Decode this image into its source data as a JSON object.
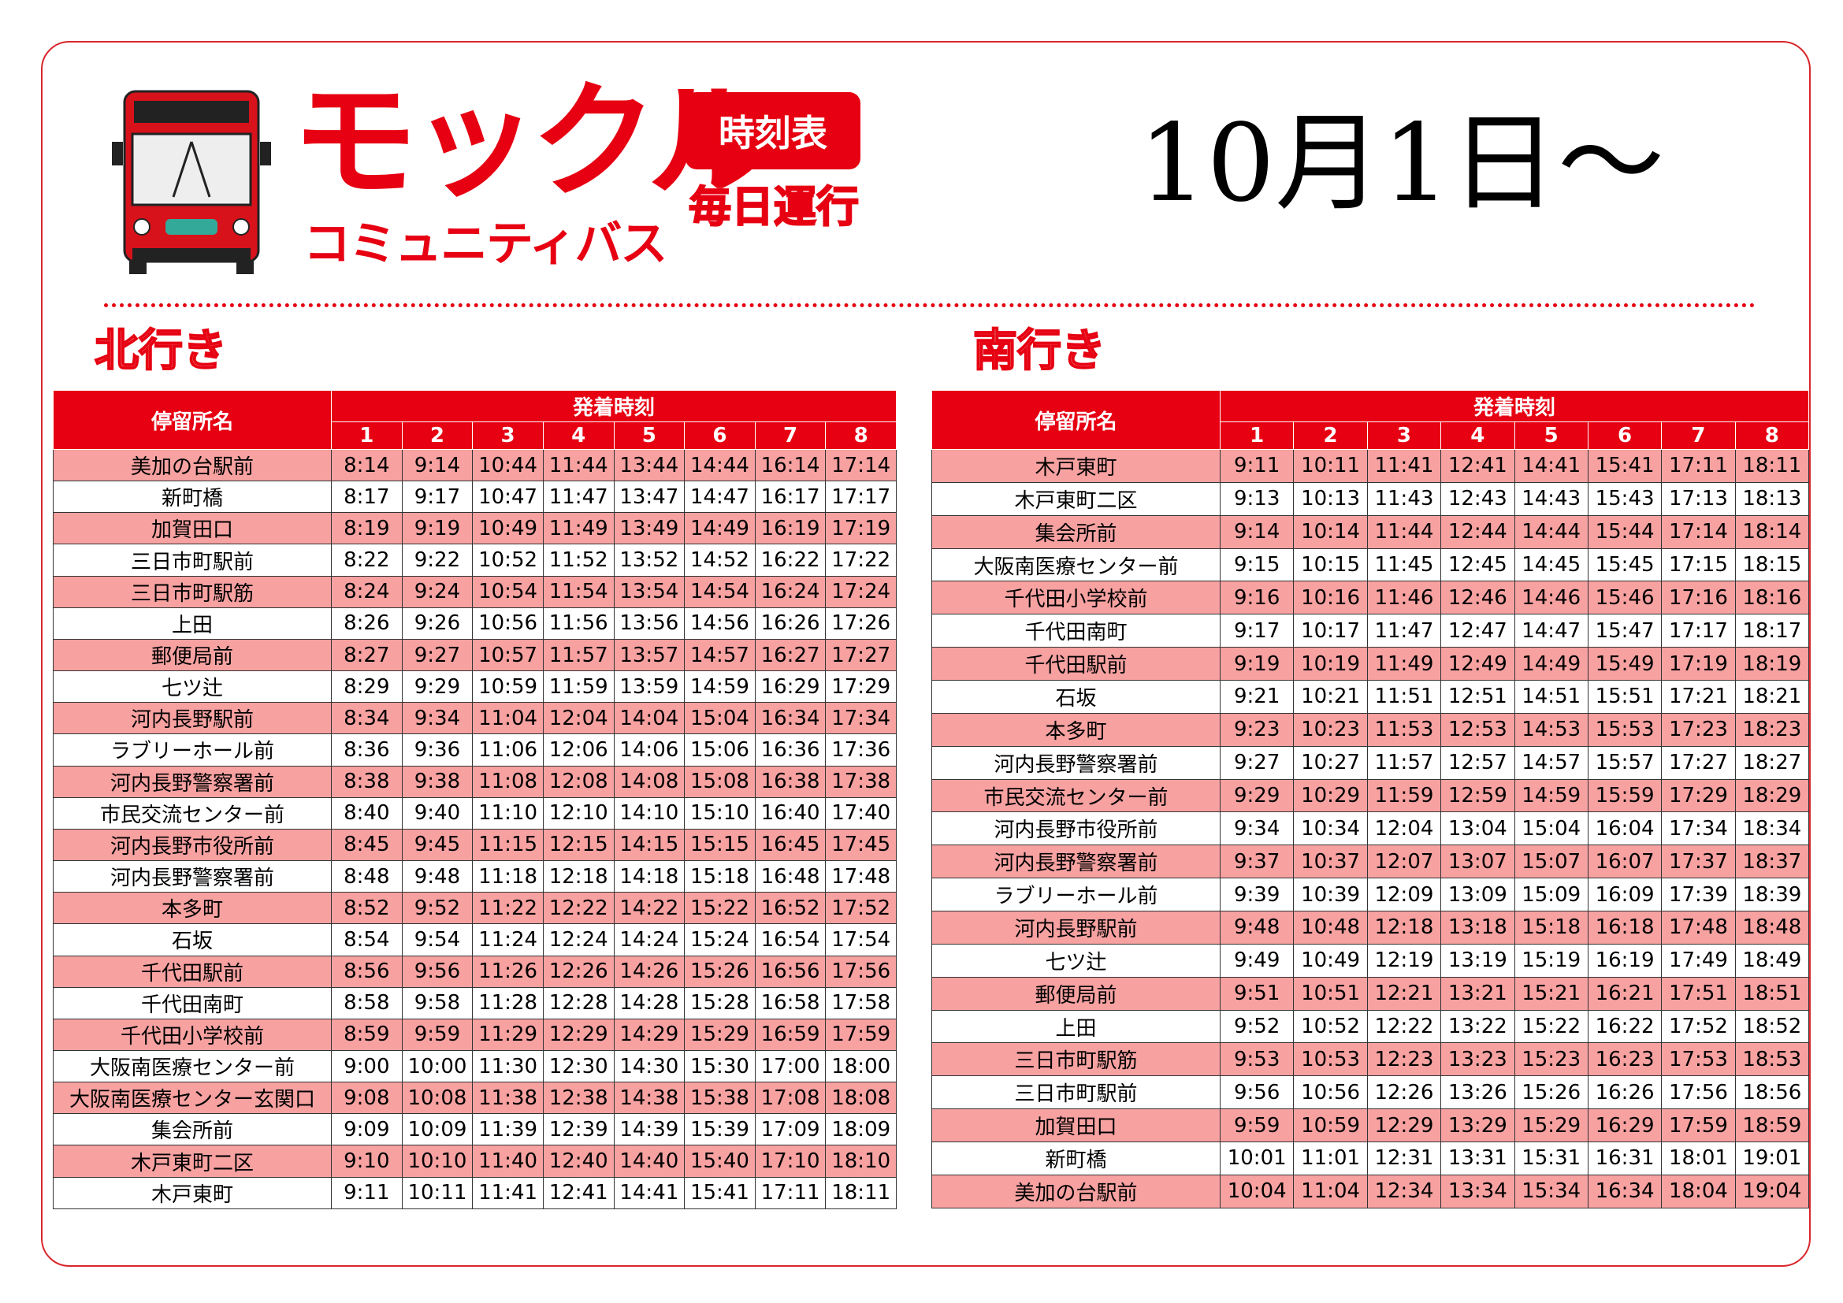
{
  "header": {
    "brand": "モックル",
    "subtitle": "コミュニティバス",
    "badge": "時刻表",
    "schedule": "毎日運行",
    "date": "10月1日～"
  },
  "north": {
    "title": "北行き",
    "stop_header": "停留所名",
    "time_header": "発着時刻",
    "trips": [
      "1",
      "2",
      "3",
      "4",
      "5",
      "6",
      "7",
      "8"
    ],
    "rows": [
      {
        "stop": "美加の台駅前",
        "times": [
          "8:14",
          "9:14",
          "10:44",
          "11:44",
          "13:44",
          "14:44",
          "16:14",
          "17:14"
        ]
      },
      {
        "stop": "新町橋",
        "times": [
          "8:17",
          "9:17",
          "10:47",
          "11:47",
          "13:47",
          "14:47",
          "16:17",
          "17:17"
        ]
      },
      {
        "stop": "加賀田口",
        "times": [
          "8:19",
          "9:19",
          "10:49",
          "11:49",
          "13:49",
          "14:49",
          "16:19",
          "17:19"
        ]
      },
      {
        "stop": "三日市町駅前",
        "times": [
          "8:22",
          "9:22",
          "10:52",
          "11:52",
          "13:52",
          "14:52",
          "16:22",
          "17:22"
        ]
      },
      {
        "stop": "三日市町駅筋",
        "times": [
          "8:24",
          "9:24",
          "10:54",
          "11:54",
          "13:54",
          "14:54",
          "16:24",
          "17:24"
        ]
      },
      {
        "stop": "上田",
        "times": [
          "8:26",
          "9:26",
          "10:56",
          "11:56",
          "13:56",
          "14:56",
          "16:26",
          "17:26"
        ]
      },
      {
        "stop": "郵便局前",
        "times": [
          "8:27",
          "9:27",
          "10:57",
          "11:57",
          "13:57",
          "14:57",
          "16:27",
          "17:27"
        ]
      },
      {
        "stop": "七ツ辻",
        "times": [
          "8:29",
          "9:29",
          "10:59",
          "11:59",
          "13:59",
          "14:59",
          "16:29",
          "17:29"
        ]
      },
      {
        "stop": "河内長野駅前",
        "times": [
          "8:34",
          "9:34",
          "11:04",
          "12:04",
          "14:04",
          "15:04",
          "16:34",
          "17:34"
        ]
      },
      {
        "stop": "ラブリーホール前",
        "times": [
          "8:36",
          "9:36",
          "11:06",
          "12:06",
          "14:06",
          "15:06",
          "16:36",
          "17:36"
        ]
      },
      {
        "stop": "河内長野警察署前",
        "times": [
          "8:38",
          "9:38",
          "11:08",
          "12:08",
          "14:08",
          "15:08",
          "16:38",
          "17:38"
        ]
      },
      {
        "stop": "市民交流センター前",
        "times": [
          "8:40",
          "9:40",
          "11:10",
          "12:10",
          "14:10",
          "15:10",
          "16:40",
          "17:40"
        ]
      },
      {
        "stop": "河内長野市役所前",
        "times": [
          "8:45",
          "9:45",
          "11:15",
          "12:15",
          "14:15",
          "15:15",
          "16:45",
          "17:45"
        ]
      },
      {
        "stop": "河内長野警察署前",
        "times": [
          "8:48",
          "9:48",
          "11:18",
          "12:18",
          "14:18",
          "15:18",
          "16:48",
          "17:48"
        ]
      },
      {
        "stop": "本多町",
        "times": [
          "8:52",
          "9:52",
          "11:22",
          "12:22",
          "14:22",
          "15:22",
          "16:52",
          "17:52"
        ]
      },
      {
        "stop": "石坂",
        "times": [
          "8:54",
          "9:54",
          "11:24",
          "12:24",
          "14:24",
          "15:24",
          "16:54",
          "17:54"
        ]
      },
      {
        "stop": "千代田駅前",
        "times": [
          "8:56",
          "9:56",
          "11:26",
          "12:26",
          "14:26",
          "15:26",
          "16:56",
          "17:56"
        ]
      },
      {
        "stop": "千代田南町",
        "times": [
          "8:58",
          "9:58",
          "11:28",
          "12:28",
          "14:28",
          "15:28",
          "16:58",
          "17:58"
        ]
      },
      {
        "stop": "千代田小学校前",
        "times": [
          "8:59",
          "9:59",
          "11:29",
          "12:29",
          "14:29",
          "15:29",
          "16:59",
          "17:59"
        ]
      },
      {
        "stop": "大阪南医療センター前",
        "times": [
          "9:00",
          "10:00",
          "11:30",
          "12:30",
          "14:30",
          "15:30",
          "17:00",
          "18:00"
        ]
      },
      {
        "stop": "大阪南医療センター玄関口",
        "times": [
          "9:08",
          "10:08",
          "11:38",
          "12:38",
          "14:38",
          "15:38",
          "17:08",
          "18:08"
        ]
      },
      {
        "stop": "集会所前",
        "times": [
          "9:09",
          "10:09",
          "11:39",
          "12:39",
          "14:39",
          "15:39",
          "17:09",
          "18:09"
        ]
      },
      {
        "stop": "木戸東町二区",
        "times": [
          "9:10",
          "10:10",
          "11:40",
          "12:40",
          "14:40",
          "15:40",
          "17:10",
          "18:10"
        ]
      },
      {
        "stop": "木戸東町",
        "times": [
          "9:11",
          "10:11",
          "11:41",
          "12:41",
          "14:41",
          "15:41",
          "17:11",
          "18:11"
        ]
      }
    ]
  },
  "south": {
    "title": "南行き",
    "stop_header": "停留所名",
    "time_header": "発着時刻",
    "trips": [
      "1",
      "2",
      "3",
      "4",
      "5",
      "6",
      "7",
      "8"
    ],
    "rows": [
      {
        "stop": "木戸東町",
        "times": [
          "9:11",
          "10:11",
          "11:41",
          "12:41",
          "14:41",
          "15:41",
          "17:11",
          "18:11"
        ]
      },
      {
        "stop": "木戸東町二区",
        "times": [
          "9:13",
          "10:13",
          "11:43",
          "12:43",
          "14:43",
          "15:43",
          "17:13",
          "18:13"
        ]
      },
      {
        "stop": "集会所前",
        "times": [
          "9:14",
          "10:14",
          "11:44",
          "12:44",
          "14:44",
          "15:44",
          "17:14",
          "18:14"
        ]
      },
      {
        "stop": "大阪南医療センター前",
        "times": [
          "9:15",
          "10:15",
          "11:45",
          "12:45",
          "14:45",
          "15:45",
          "17:15",
          "18:15"
        ]
      },
      {
        "stop": "千代田小学校前",
        "times": [
          "9:16",
          "10:16",
          "11:46",
          "12:46",
          "14:46",
          "15:46",
          "17:16",
          "18:16"
        ]
      },
      {
        "stop": "千代田南町",
        "times": [
          "9:17",
          "10:17",
          "11:47",
          "12:47",
          "14:47",
          "15:47",
          "17:17",
          "18:17"
        ]
      },
      {
        "stop": "千代田駅前",
        "times": [
          "9:19",
          "10:19",
          "11:49",
          "12:49",
          "14:49",
          "15:49",
          "17:19",
          "18:19"
        ]
      },
      {
        "stop": "石坂",
        "times": [
          "9:21",
          "10:21",
          "11:51",
          "12:51",
          "14:51",
          "15:51",
          "17:21",
          "18:21"
        ]
      },
      {
        "stop": "本多町",
        "times": [
          "9:23",
          "10:23",
          "11:53",
          "12:53",
          "14:53",
          "15:53",
          "17:23",
          "18:23"
        ]
      },
      {
        "stop": "河内長野警察署前",
        "times": [
          "9:27",
          "10:27",
          "11:57",
          "12:57",
          "14:57",
          "15:57",
          "17:27",
          "18:27"
        ]
      },
      {
        "stop": "市民交流センター前",
        "times": [
          "9:29",
          "10:29",
          "11:59",
          "12:59",
          "14:59",
          "15:59",
          "17:29",
          "18:29"
        ]
      },
      {
        "stop": "河内長野市役所前",
        "times": [
          "9:34",
          "10:34",
          "12:04",
          "13:04",
          "15:04",
          "16:04",
          "17:34",
          "18:34"
        ]
      },
      {
        "stop": "河内長野警察署前",
        "times": [
          "9:37",
          "10:37",
          "12:07",
          "13:07",
          "15:07",
          "16:07",
          "17:37",
          "18:37"
        ]
      },
      {
        "stop": "ラブリーホール前",
        "times": [
          "9:39",
          "10:39",
          "12:09",
          "13:09",
          "15:09",
          "16:09",
          "17:39",
          "18:39"
        ]
      },
      {
        "stop": "河内長野駅前",
        "times": [
          "9:48",
          "10:48",
          "12:18",
          "13:18",
          "15:18",
          "16:18",
          "17:48",
          "18:48"
        ]
      },
      {
        "stop": "七ツ辻",
        "times": [
          "9:49",
          "10:49",
          "12:19",
          "13:19",
          "15:19",
          "16:19",
          "17:49",
          "18:49"
        ]
      },
      {
        "stop": "郵便局前",
        "times": [
          "9:51",
          "10:51",
          "12:21",
          "13:21",
          "15:21",
          "16:21",
          "17:51",
          "18:51"
        ]
      },
      {
        "stop": "上田",
        "times": [
          "9:52",
          "10:52",
          "12:22",
          "13:22",
          "15:22",
          "16:22",
          "17:52",
          "18:52"
        ]
      },
      {
        "stop": "三日市町駅筋",
        "times": [
          "9:53",
          "10:53",
          "12:23",
          "13:23",
          "15:23",
          "16:23",
          "17:53",
          "18:53"
        ]
      },
      {
        "stop": "三日市町駅前",
        "times": [
          "9:56",
          "10:56",
          "12:26",
          "13:26",
          "15:26",
          "16:26",
          "17:56",
          "18:56"
        ]
      },
      {
        "stop": "加賀田口",
        "times": [
          "9:59",
          "10:59",
          "12:29",
          "13:29",
          "15:29",
          "16:29",
          "17:59",
          "18:59"
        ]
      },
      {
        "stop": "新町橋",
        "times": [
          "10:01",
          "11:01",
          "12:31",
          "13:31",
          "15:31",
          "16:31",
          "18:01",
          "19:01"
        ]
      },
      {
        "stop": "美加の台駅前",
        "times": [
          "10:04",
          "11:04",
          "12:34",
          "13:34",
          "15:34",
          "16:34",
          "18:04",
          "19:04"
        ]
      }
    ]
  }
}
